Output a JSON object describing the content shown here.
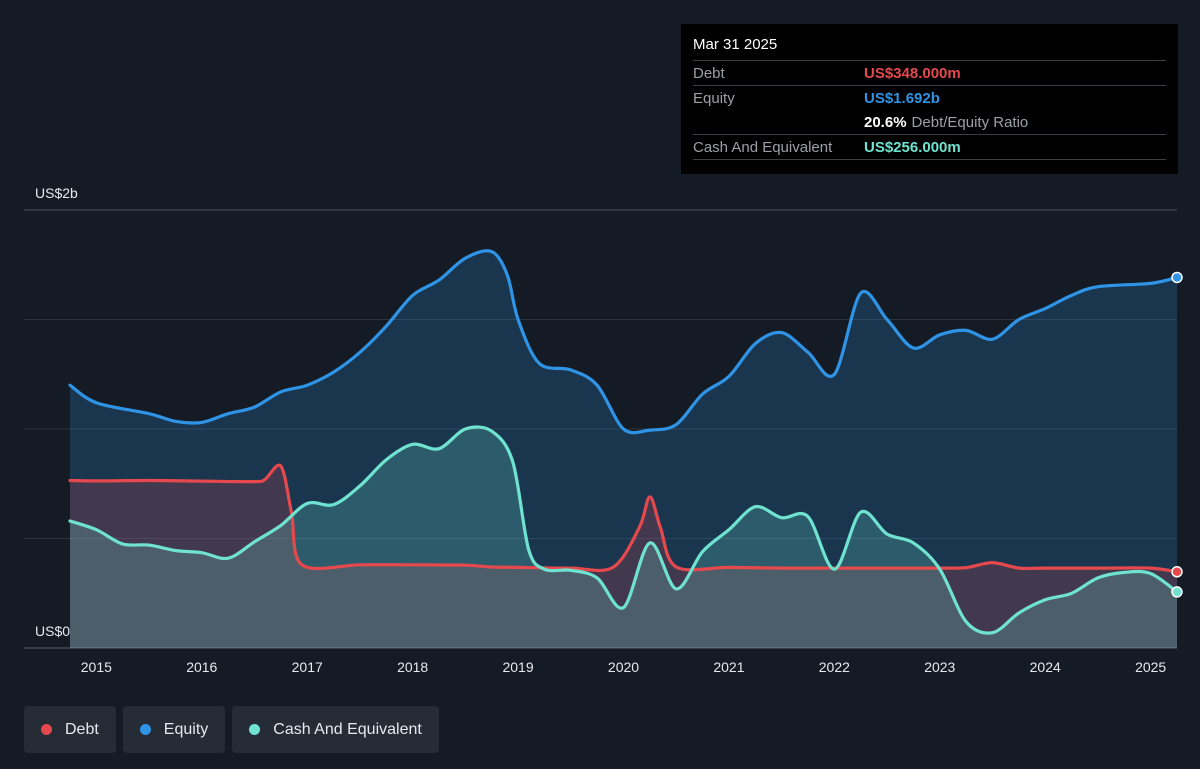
{
  "tooltip": {
    "date": "Mar 31 2025",
    "debt_label": "Debt",
    "debt_value": "US$348.000m",
    "equity_label": "Equity",
    "equity_value": "US$1.692b",
    "ratio_value": "20.6%",
    "ratio_label": "Debt/Equity Ratio",
    "cash_label": "Cash And Equivalent",
    "cash_value": "US$256.000m"
  },
  "legend": [
    {
      "label": "Debt",
      "color": "#e5484d"
    },
    {
      "label": "Equity",
      "color": "#2f94e6"
    },
    {
      "label": "Cash And Equivalent",
      "color": "#6fe3d0"
    }
  ],
  "chart_data": {
    "type": "area",
    "y_top_label": "US$2b",
    "y_bottom_label": "US$0",
    "ylim": [
      0,
      2.0
    ],
    "unit": "US$ billions",
    "x_ticks": [
      "2015",
      "2016",
      "2017",
      "2018",
      "2019",
      "2020",
      "2021",
      "2022",
      "2023",
      "2024",
      "2025"
    ],
    "x_range": [
      2014.75,
      2025.25
    ],
    "colors": {
      "debt": "#e5484d",
      "equity": "#2f94e6",
      "cash": "#6fe3d0"
    },
    "series": [
      {
        "name": "Debt",
        "points": [
          [
            2014.75,
            0.765
          ],
          [
            2015.0,
            0.763
          ],
          [
            2015.5,
            0.765
          ],
          [
            2016.0,
            0.762
          ],
          [
            2016.5,
            0.76
          ],
          [
            2016.6,
            0.77
          ],
          [
            2016.75,
            0.83
          ],
          [
            2016.85,
            0.62
          ],
          [
            2016.95,
            0.38
          ],
          [
            2017.5,
            0.38
          ],
          [
            2018.0,
            0.38
          ],
          [
            2018.5,
            0.378
          ],
          [
            2018.75,
            0.37
          ],
          [
            2019.0,
            0.368
          ],
          [
            2019.5,
            0.365
          ],
          [
            2019.9,
            0.368
          ],
          [
            2020.15,
            0.55
          ],
          [
            2020.25,
            0.69
          ],
          [
            2020.35,
            0.55
          ],
          [
            2020.5,
            0.37
          ],
          [
            2021.0,
            0.368
          ],
          [
            2021.5,
            0.365
          ],
          [
            2022.0,
            0.365
          ],
          [
            2022.5,
            0.365
          ],
          [
            2023.0,
            0.365
          ],
          [
            2023.25,
            0.367
          ],
          [
            2023.5,
            0.39
          ],
          [
            2023.75,
            0.365
          ],
          [
            2024.0,
            0.365
          ],
          [
            2024.5,
            0.365
          ],
          [
            2025.0,
            0.365
          ],
          [
            2025.25,
            0.348
          ]
        ]
      },
      {
        "name": "Equity",
        "points": [
          [
            2014.75,
            1.2
          ],
          [
            2015.0,
            1.12
          ],
          [
            2015.5,
            1.07
          ],
          [
            2015.75,
            1.035
          ],
          [
            2016.0,
            1.03
          ],
          [
            2016.25,
            1.07
          ],
          [
            2016.5,
            1.1
          ],
          [
            2016.75,
            1.17
          ],
          [
            2017.0,
            1.2
          ],
          [
            2017.25,
            1.26
          ],
          [
            2017.5,
            1.35
          ],
          [
            2017.75,
            1.47
          ],
          [
            2018.0,
            1.61
          ],
          [
            2018.25,
            1.68
          ],
          [
            2018.5,
            1.78
          ],
          [
            2018.75,
            1.81
          ],
          [
            2018.9,
            1.7
          ],
          [
            2019.0,
            1.5
          ],
          [
            2019.2,
            1.3
          ],
          [
            2019.5,
            1.27
          ],
          [
            2019.75,
            1.2
          ],
          [
            2020.0,
            1.0
          ],
          [
            2020.25,
            0.995
          ],
          [
            2020.5,
            1.02
          ],
          [
            2020.75,
            1.16
          ],
          [
            2021.0,
            1.24
          ],
          [
            2021.25,
            1.39
          ],
          [
            2021.5,
            1.44
          ],
          [
            2021.75,
            1.35
          ],
          [
            2022.0,
            1.25
          ],
          [
            2022.25,
            1.62
          ],
          [
            2022.5,
            1.5
          ],
          [
            2022.75,
            1.37
          ],
          [
            2023.0,
            1.43
          ],
          [
            2023.25,
            1.45
          ],
          [
            2023.5,
            1.41
          ],
          [
            2023.75,
            1.5
          ],
          [
            2024.0,
            1.55
          ],
          [
            2024.25,
            1.61
          ],
          [
            2024.5,
            1.65
          ],
          [
            2025.0,
            1.665
          ],
          [
            2025.25,
            1.692
          ]
        ]
      },
      {
        "name": "Cash And Equivalent",
        "points": [
          [
            2014.75,
            0.58
          ],
          [
            2015.0,
            0.54
          ],
          [
            2015.25,
            0.475
          ],
          [
            2015.5,
            0.47
          ],
          [
            2015.75,
            0.445
          ],
          [
            2016.0,
            0.435
          ],
          [
            2016.25,
            0.41
          ],
          [
            2016.5,
            0.485
          ],
          [
            2016.75,
            0.56
          ],
          [
            2017.0,
            0.66
          ],
          [
            2017.25,
            0.655
          ],
          [
            2017.5,
            0.74
          ],
          [
            2017.75,
            0.86
          ],
          [
            2018.0,
            0.93
          ],
          [
            2018.25,
            0.91
          ],
          [
            2018.5,
            1.0
          ],
          [
            2018.75,
            0.99
          ],
          [
            2018.95,
            0.85
          ],
          [
            2019.1,
            0.45
          ],
          [
            2019.25,
            0.36
          ],
          [
            2019.5,
            0.355
          ],
          [
            2019.75,
            0.32
          ],
          [
            2020.0,
            0.185
          ],
          [
            2020.25,
            0.48
          ],
          [
            2020.5,
            0.27
          ],
          [
            2020.75,
            0.44
          ],
          [
            2021.0,
            0.54
          ],
          [
            2021.25,
            0.645
          ],
          [
            2021.5,
            0.595
          ],
          [
            2021.75,
            0.6
          ],
          [
            2022.0,
            0.36
          ],
          [
            2022.25,
            0.62
          ],
          [
            2022.5,
            0.52
          ],
          [
            2022.75,
            0.48
          ],
          [
            2023.0,
            0.36
          ],
          [
            2023.25,
            0.12
          ],
          [
            2023.5,
            0.07
          ],
          [
            2023.75,
            0.16
          ],
          [
            2024.0,
            0.22
          ],
          [
            2024.25,
            0.25
          ],
          [
            2024.5,
            0.32
          ],
          [
            2024.75,
            0.345
          ],
          [
            2025.0,
            0.34
          ],
          [
            2025.25,
            0.256
          ]
        ]
      }
    ]
  }
}
